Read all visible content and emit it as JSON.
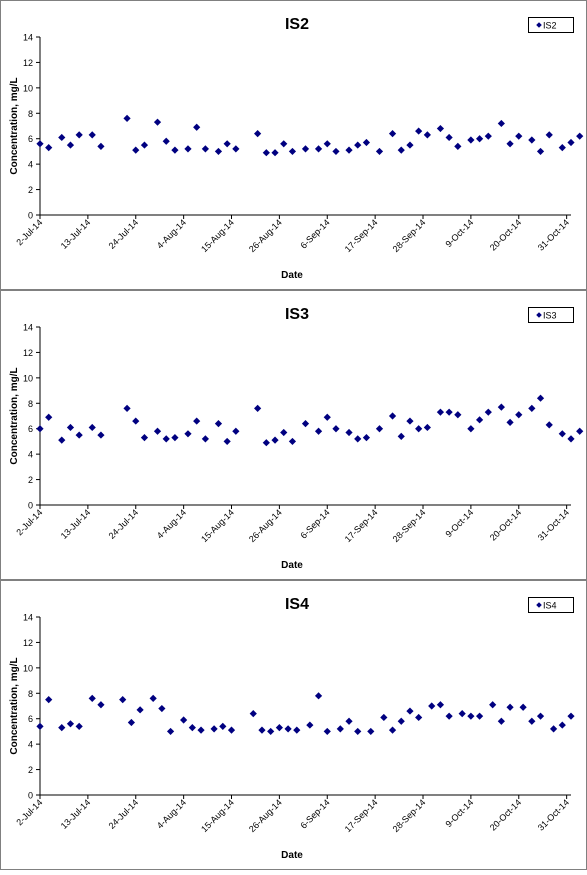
{
  "chart_data": [
    {
      "type": "scatter",
      "title": "IS2",
      "xlabel": "Date",
      "ylabel": "Concentration, mg/L",
      "ylim": [
        0,
        14
      ],
      "y_ticks": [
        "0",
        "2",
        "4",
        "6",
        "8",
        "10",
        "12",
        "14"
      ],
      "x_range": [
        "2014-07-02",
        "2014-11-01"
      ],
      "x_tick_labels": [
        "2-Jul-14",
        "13-Jul-14",
        "24-Jul-14",
        "4-Aug-14",
        "15-Aug-14",
        "26-Aug-14",
        "6-Sep-14",
        "17-Sep-14",
        "28-Sep-14",
        "9-Oct-14",
        "20-Oct-14",
        "31-Oct-14"
      ],
      "grid": false,
      "legend_position": "top-right",
      "marker_color": "#000080",
      "series": [
        {
          "name": "IS2",
          "points": [
            [
              "2014-07-02",
              5.6
            ],
            [
              "2014-07-04",
              5.3
            ],
            [
              "2014-07-07",
              6.1
            ],
            [
              "2014-07-09",
              5.5
            ],
            [
              "2014-07-11",
              6.3
            ],
            [
              "2014-07-14",
              6.3
            ],
            [
              "2014-07-16",
              5.4
            ],
            [
              "2014-07-22",
              7.6
            ],
            [
              "2014-07-24",
              5.1
            ],
            [
              "2014-07-26",
              5.5
            ],
            [
              "2014-07-29",
              7.3
            ],
            [
              "2014-07-31",
              5.8
            ],
            [
              "2014-08-02",
              5.1
            ],
            [
              "2014-08-05",
              5.2
            ],
            [
              "2014-08-07",
              6.9
            ],
            [
              "2014-08-09",
              5.2
            ],
            [
              "2014-08-12",
              5.0
            ],
            [
              "2014-08-14",
              5.6
            ],
            [
              "2014-08-16",
              5.2
            ],
            [
              "2014-08-21",
              6.4
            ],
            [
              "2014-08-23",
              4.9
            ],
            [
              "2014-08-25",
              4.9
            ],
            [
              "2014-08-27",
              5.6
            ],
            [
              "2014-08-29",
              5.0
            ],
            [
              "2014-09-01",
              5.2
            ],
            [
              "2014-09-04",
              5.2
            ],
            [
              "2014-09-06",
              5.6
            ],
            [
              "2014-09-08",
              5.0
            ],
            [
              "2014-09-11",
              5.1
            ],
            [
              "2014-09-13",
              5.5
            ],
            [
              "2014-09-15",
              5.7
            ],
            [
              "2014-09-18",
              5.0
            ],
            [
              "2014-09-21",
              6.4
            ],
            [
              "2014-09-23",
              5.1
            ],
            [
              "2014-09-25",
              5.5
            ],
            [
              "2014-09-27",
              6.6
            ],
            [
              "2014-09-29",
              6.3
            ],
            [
              "2014-10-02",
              6.8
            ],
            [
              "2014-10-04",
              6.1
            ],
            [
              "2014-10-06",
              5.4
            ],
            [
              "2014-10-09",
              5.9
            ],
            [
              "2014-10-11",
              6.0
            ],
            [
              "2014-10-13",
              6.2
            ],
            [
              "2014-10-16",
              7.2
            ],
            [
              "2014-10-18",
              5.6
            ],
            [
              "2014-10-20",
              6.2
            ],
            [
              "2014-10-23",
              5.9
            ],
            [
              "2014-10-25",
              5.0
            ],
            [
              "2014-10-27",
              6.3
            ],
            [
              "2014-10-30",
              5.3
            ],
            [
              "2014-11-01",
              5.7
            ],
            [
              "2014-11-03",
              6.2
            ]
          ]
        }
      ]
    },
    {
      "type": "scatter",
      "title": "IS3",
      "xlabel": "Date",
      "ylabel": "Concentration, mg/L",
      "ylim": [
        0,
        14
      ],
      "y_ticks": [
        "0",
        "2",
        "4",
        "6",
        "8",
        "10",
        "12",
        "14"
      ],
      "x_range": [
        "2014-07-02",
        "2014-11-01"
      ],
      "x_tick_labels": [
        "2-Jul-14",
        "13-Jul-14",
        "24-Jul-14",
        "4-Aug-14",
        "15-Aug-14",
        "26-Aug-14",
        "6-Sep-14",
        "17-Sep-14",
        "28-Sep-14",
        "9-Oct-14",
        "20-Oct-14",
        "31-Oct-14"
      ],
      "grid": false,
      "legend_position": "top-right",
      "marker_color": "#000080",
      "series": [
        {
          "name": "IS3",
          "points": [
            [
              "2014-07-02",
              6.0
            ],
            [
              "2014-07-04",
              6.9
            ],
            [
              "2014-07-07",
              5.1
            ],
            [
              "2014-07-09",
              6.1
            ],
            [
              "2014-07-11",
              5.5
            ],
            [
              "2014-07-14",
              6.1
            ],
            [
              "2014-07-16",
              5.5
            ],
            [
              "2014-07-22",
              7.6
            ],
            [
              "2014-07-24",
              6.6
            ],
            [
              "2014-07-26",
              5.3
            ],
            [
              "2014-07-29",
              5.8
            ],
            [
              "2014-07-31",
              5.2
            ],
            [
              "2014-08-02",
              5.3
            ],
            [
              "2014-08-05",
              5.6
            ],
            [
              "2014-08-07",
              6.6
            ],
            [
              "2014-08-09",
              5.2
            ],
            [
              "2014-08-12",
              6.4
            ],
            [
              "2014-08-14",
              5.0
            ],
            [
              "2014-08-16",
              5.8
            ],
            [
              "2014-08-21",
              7.6
            ],
            [
              "2014-08-23",
              4.9
            ],
            [
              "2014-08-25",
              5.1
            ],
            [
              "2014-08-27",
              5.7
            ],
            [
              "2014-08-29",
              5.0
            ],
            [
              "2014-09-01",
              6.4
            ],
            [
              "2014-09-04",
              5.8
            ],
            [
              "2014-09-06",
              6.9
            ],
            [
              "2014-09-08",
              6.0
            ],
            [
              "2014-09-11",
              5.7
            ],
            [
              "2014-09-13",
              5.2
            ],
            [
              "2014-09-15",
              5.3
            ],
            [
              "2014-09-18",
              6.0
            ],
            [
              "2014-09-21",
              7.0
            ],
            [
              "2014-09-23",
              5.4
            ],
            [
              "2014-09-25",
              6.6
            ],
            [
              "2014-09-27",
              6.0
            ],
            [
              "2014-09-29",
              6.1
            ],
            [
              "2014-10-02",
              7.3
            ],
            [
              "2014-10-04",
              7.3
            ],
            [
              "2014-10-06",
              7.1
            ],
            [
              "2014-10-09",
              6.0
            ],
            [
              "2014-10-11",
              6.7
            ],
            [
              "2014-10-13",
              7.3
            ],
            [
              "2014-10-16",
              7.7
            ],
            [
              "2014-10-18",
              6.5
            ],
            [
              "2014-10-20",
              7.1
            ],
            [
              "2014-10-23",
              7.6
            ],
            [
              "2014-10-25",
              8.4
            ],
            [
              "2014-10-27",
              6.3
            ],
            [
              "2014-10-30",
              5.6
            ],
            [
              "2014-11-01",
              5.2
            ],
            [
              "2014-11-03",
              5.8
            ]
          ]
        }
      ]
    },
    {
      "type": "scatter",
      "title": "IS4",
      "xlabel": "Date",
      "ylabel": "Concentration, mg/L",
      "ylim": [
        0,
        14
      ],
      "y_ticks": [
        "0",
        "2",
        "4",
        "6",
        "8",
        "10",
        "12",
        "14"
      ],
      "x_range": [
        "2014-07-02",
        "2014-11-01"
      ],
      "x_tick_labels": [
        "2-Jul-14",
        "13-Jul-14",
        "24-Jul-14",
        "4-Aug-14",
        "15-Aug-14",
        "26-Aug-14",
        "6-Sep-14",
        "17-Sep-14",
        "28-Sep-14",
        "9-Oct-14",
        "20-Oct-14",
        "31-Oct-14"
      ],
      "grid": false,
      "legend_position": "top-right",
      "marker_color": "#000080",
      "series": [
        {
          "name": "IS4",
          "points": [
            [
              "2014-07-02",
              5.4
            ],
            [
              "2014-07-04",
              7.5
            ],
            [
              "2014-07-07",
              5.3
            ],
            [
              "2014-07-09",
              5.6
            ],
            [
              "2014-07-11",
              5.4
            ],
            [
              "2014-07-14",
              7.6
            ],
            [
              "2014-07-16",
              7.1
            ],
            [
              "2014-07-21",
              7.5
            ],
            [
              "2014-07-23",
              5.7
            ],
            [
              "2014-07-25",
              6.7
            ],
            [
              "2014-07-28",
              7.6
            ],
            [
              "2014-07-30",
              6.8
            ],
            [
              "2014-08-01",
              5.0
            ],
            [
              "2014-08-04",
              5.9
            ],
            [
              "2014-08-06",
              5.3
            ],
            [
              "2014-08-08",
              5.1
            ],
            [
              "2014-08-11",
              5.2
            ],
            [
              "2014-08-13",
              5.4
            ],
            [
              "2014-08-15",
              5.1
            ],
            [
              "2014-08-20",
              6.4
            ],
            [
              "2014-08-22",
              5.1
            ],
            [
              "2014-08-24",
              5.0
            ],
            [
              "2014-08-26",
              5.3
            ],
            [
              "2014-08-28",
              5.2
            ],
            [
              "2014-08-30",
              5.1
            ],
            [
              "2014-09-02",
              5.5
            ],
            [
              "2014-09-04",
              7.8
            ],
            [
              "2014-09-06",
              5.0
            ],
            [
              "2014-09-09",
              5.2
            ],
            [
              "2014-09-11",
              5.8
            ],
            [
              "2014-09-13",
              5.0
            ],
            [
              "2014-09-16",
              5.0
            ],
            [
              "2014-09-19",
              6.1
            ],
            [
              "2014-09-21",
              5.1
            ],
            [
              "2014-09-23",
              5.8
            ],
            [
              "2014-09-25",
              6.6
            ],
            [
              "2014-09-27",
              6.1
            ],
            [
              "2014-09-30",
              7.0
            ],
            [
              "2014-10-02",
              7.1
            ],
            [
              "2014-10-04",
              6.2
            ],
            [
              "2014-10-07",
              6.4
            ],
            [
              "2014-10-09",
              6.2
            ],
            [
              "2014-10-11",
              6.2
            ],
            [
              "2014-10-14",
              7.1
            ],
            [
              "2014-10-16",
              5.8
            ],
            [
              "2014-10-18",
              6.9
            ],
            [
              "2014-10-21",
              6.9
            ],
            [
              "2014-10-23",
              5.8
            ],
            [
              "2014-10-25",
              6.2
            ],
            [
              "2014-10-28",
              5.2
            ],
            [
              "2014-10-30",
              5.5
            ],
            [
              "2014-11-01",
              6.2
            ]
          ]
        }
      ]
    }
  ]
}
